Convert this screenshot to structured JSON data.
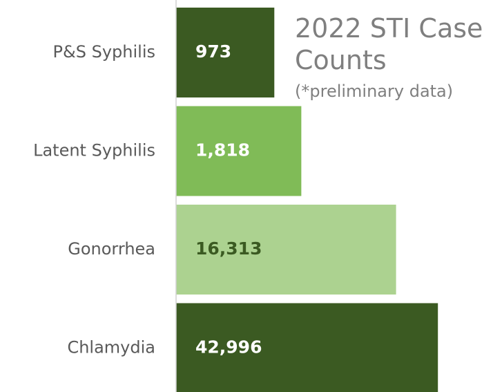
{
  "chart_data": {
    "type": "bar",
    "orientation": "horizontal",
    "title": "2022 STI Case Counts",
    "subtitle": "(*preliminary data)",
    "categories": [
      "P&S Syphilis",
      "Latent Syphilis",
      "Gonorrhea",
      "Chlamydia"
    ],
    "values": [
      973,
      1818,
      16313,
      42996
    ],
    "value_labels": [
      "973",
      "1,818",
      "16,313",
      "42,996"
    ],
    "colors": [
      "#3b5a22",
      "#80bb57",
      "#acd290",
      "#3b5a22"
    ],
    "label_colors": [
      "#ffffff",
      "#ffffff",
      "#3b5a22",
      "#ffffff"
    ],
    "log_scale": true,
    "xlim": [
      100,
      100000
    ]
  }
}
